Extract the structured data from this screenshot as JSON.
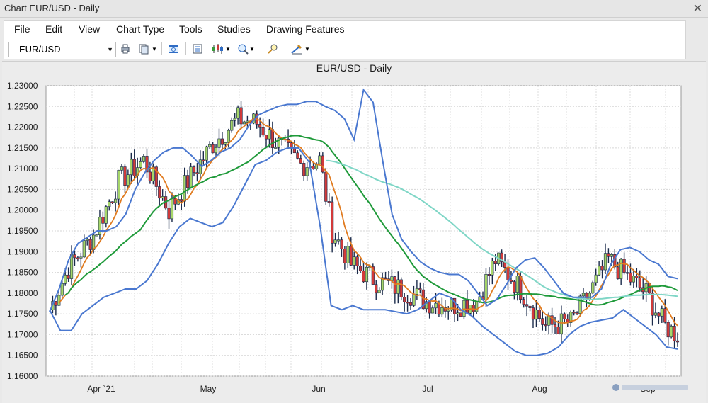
{
  "window": {
    "title": "Chart EUR/USD - Daily"
  },
  "menu": [
    "File",
    "Edit",
    "View",
    "Chart Type",
    "Tools",
    "Studies",
    "Drawing Features"
  ],
  "toolbar": {
    "symbol": "EUR/USD"
  },
  "chart_data": {
    "type": "candlestick",
    "title": "EUR/USD - Daily",
    "ylim": [
      1.16,
      1.23
    ],
    "yticks": [
      "1.23000",
      "1.22500",
      "1.22000",
      "1.21500",
      "1.21000",
      "1.20500",
      "1.20000",
      "1.19500",
      "1.19000",
      "1.18500",
      "1.18000",
      "1.17500",
      "1.17000",
      "1.16500",
      "1.16000"
    ],
    "xticks": [
      "Apr `21",
      "May",
      "Jun",
      "Jul",
      "Aug",
      "Sep"
    ],
    "grid": true,
    "series": [
      {
        "name": "",
        "color": "#4a78d0",
        "kind": "band-upper",
        "values": [
          1.1755,
          1.181,
          1.188,
          1.192,
          1.1935,
          1.195,
          1.195,
          1.196,
          1.199,
          1.205,
          1.209,
          1.212,
          1.214,
          1.215,
          1.215,
          1.213,
          1.2105,
          1.212,
          1.214,
          1.215,
          1.217,
          1.2205,
          1.223,
          1.224,
          1.225,
          1.2255,
          1.2255,
          1.2262,
          1.2262,
          1.225,
          1.224,
          1.222,
          1.217,
          1.229,
          1.226,
          1.212,
          1.199,
          1.193,
          1.19,
          1.1875,
          1.186,
          1.185,
          1.1845,
          1.1845,
          1.183,
          1.18,
          1.177,
          1.1785,
          1.182,
          1.186,
          1.188,
          1.1885,
          1.186,
          1.183,
          1.18,
          1.179,
          1.179,
          1.179,
          1.181,
          1.187,
          1.1905,
          1.191,
          1.19,
          1.188,
          1.187,
          1.184,
          1.1835
        ]
      },
      {
        "name": "",
        "color": "#4a78d0",
        "kind": "band-lower",
        "values": [
          1.176,
          1.171,
          1.171,
          1.175,
          1.177,
          1.179,
          1.18,
          1.181,
          1.181,
          1.183,
          1.187,
          1.192,
          1.196,
          1.198,
          1.197,
          1.196,
          1.197,
          1.201,
          1.206,
          1.211,
          1.212,
          1.214,
          1.215,
          1.215,
          1.2115,
          1.196,
          1.177,
          1.176,
          1.177,
          1.176,
          1.176,
          1.176,
          1.1755,
          1.175,
          1.176,
          1.178,
          1.18,
          1.179,
          1.176,
          1.1745,
          1.172,
          1.17,
          1.168,
          1.166,
          1.165,
          1.165,
          1.1655,
          1.167,
          1.17,
          1.172,
          1.173,
          1.1735,
          1.174,
          1.176,
          1.174,
          1.172,
          1.17,
          1.167,
          1.1665
        ]
      },
      {
        "name": "",
        "color": "#e07b20",
        "kind": "ma-short"
      },
      {
        "name": "",
        "color": "#1f9a3a",
        "kind": "ma-mid"
      },
      {
        "name": "",
        "color": "#7fd6c6",
        "kind": "ma-long"
      }
    ]
  }
}
